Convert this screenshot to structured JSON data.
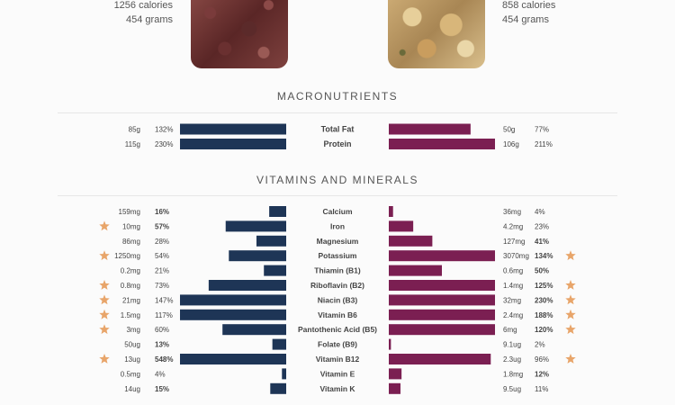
{
  "foods": {
    "left": {
      "calories": "1256 calories",
      "weight": "454 grams"
    },
    "right": {
      "calories": "858 calories",
      "weight": "454 grams"
    }
  },
  "sections": {
    "macro_title": "MACRONUTRIENTS",
    "vitamins_title": "VITAMINS AND MINERALS"
  },
  "colors": {
    "left_bar": "#1e3556",
    "right_bar": "#7b1f52",
    "star": "#e8a56a"
  },
  "chart_data": [
    {
      "type": "bar",
      "title": "MACRONUTRIENTS",
      "categories": [
        "Total Fat",
        "Protein"
      ],
      "series": [
        {
          "values": [
            132,
            230
          ],
          "amounts": [
            "85g",
            "115g"
          ]
        },
        {
          "values": [
            77,
            211
          ],
          "amounts": [
            "50g",
            "106g"
          ]
        }
      ]
    },
    {
      "type": "bar",
      "title": "VITAMINS AND MINERALS",
      "categories": [
        "Calcium",
        "Iron",
        "Magnesium",
        "Potassium",
        "Thiamin (B1)",
        "Riboflavin (B2)",
        "Niacin (B3)",
        "Vitamin B6",
        "Pantothenic Acid (B5)",
        "Folate (B9)",
        "Vitamin B12",
        "Vitamin E",
        "Vitamin K"
      ],
      "series": [
        {
          "values": [
            16,
            57,
            28,
            54,
            21,
            73,
            147,
            117,
            60,
            13,
            548,
            4,
            15
          ],
          "amounts": [
            "159mg",
            "10mg",
            "86mg",
            "1250mg",
            "0.2mg",
            "0.8mg",
            "21mg",
            "1.5mg",
            "3mg",
            "50ug",
            "13ug",
            "0.5mg",
            "14ug"
          ],
          "bold": [
            true,
            true,
            false,
            false,
            false,
            false,
            false,
            false,
            false,
            true,
            true,
            false,
            true
          ],
          "stars": [
            false,
            true,
            false,
            true,
            false,
            true,
            true,
            true,
            true,
            false,
            true,
            false,
            false
          ]
        },
        {
          "values": [
            4,
            23,
            41,
            134,
            50,
            125,
            230,
            188,
            120,
            2,
            96,
            12,
            11
          ],
          "amounts": [
            "36mg",
            "4.2mg",
            "127mg",
            "3070mg",
            "0.6mg",
            "1.4mg",
            "32mg",
            "2.4mg",
            "6mg",
            "9.1ug",
            "2.3ug",
            "1.8mg",
            "9.5ug"
          ],
          "bold": [
            false,
            false,
            true,
            true,
            true,
            true,
            true,
            true,
            true,
            false,
            false,
            true,
            false
          ],
          "stars": [
            false,
            false,
            false,
            true,
            false,
            true,
            true,
            true,
            true,
            false,
            true,
            false,
            false
          ]
        }
      ]
    }
  ]
}
